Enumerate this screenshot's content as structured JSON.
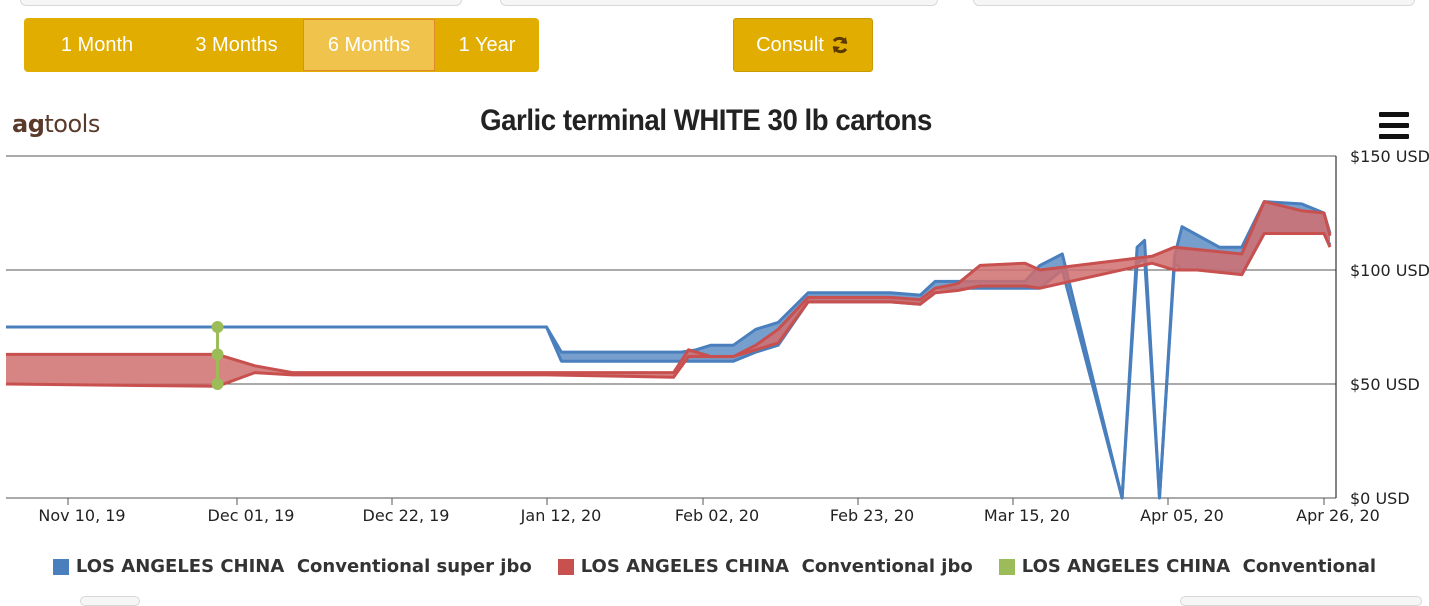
{
  "range_buttons": [
    {
      "label": "1 Month",
      "active": false
    },
    {
      "label": "3 Months",
      "active": false
    },
    {
      "label": "6 Months",
      "active": true
    },
    {
      "label": "1 Year",
      "active": false
    }
  ],
  "consult_button": {
    "label": "Consult",
    "icon": "refresh-icon"
  },
  "logo": {
    "part1": "ag",
    "part2": "tools"
  },
  "menu_icon": "hamburger-menu-icon",
  "colors": {
    "accent": "#e0ad00",
    "series_blue": "#4a7fbd",
    "series_red": "#c8504f",
    "series_red_fill": "#d06e6e",
    "series_green": "#9cbc59"
  },
  "chart_data": {
    "type": "area",
    "title": "Garlic terminal WHITE 30 lb cartons",
    "xlabel": "",
    "ylabel": "",
    "x_ticks": [
      "Nov 10, 19",
      "Dec 01, 19",
      "Dec 22, 19",
      "Jan 12, 20",
      "Feb 02, 20",
      "Feb 23, 20",
      "Mar 15, 20",
      "Apr 05, 20",
      "Apr 26, 20"
    ],
    "y_ticks": [
      "$0 USD",
      "$50 USD",
      "$100 USD",
      "$150 USD"
    ],
    "ylim": [
      0,
      150
    ],
    "grid": true,
    "legend_position": "bottom",
    "series": [
      {
        "name": "LOS ANGELES CHINA  Conventional super jbo",
        "color": "#4a7fbd",
        "x": [
          "2019-11-01",
          "2019-11-30",
          "2020-01-13",
          "2020-01-15",
          "2020-01-31",
          "2020-02-02",
          "2020-02-04",
          "2020-02-07",
          "2020-02-10",
          "2020-02-13",
          "2020-02-17",
          "2020-02-28",
          "2020-03-03",
          "2020-03-05",
          "2020-03-08",
          "2020-03-11",
          "2020-03-17",
          "2020-03-19",
          "2020-03-22",
          "2020-03-30",
          "2020-04-01",
          "2020-04-02",
          "2020-04-04",
          "2020-04-06",
          "2020-04-07",
          "2020-04-12",
          "2020-04-15",
          "2020-04-18",
          "2020-04-23",
          "2020-04-26",
          "2020-04-30"
        ],
        "high": [
          75,
          75,
          75,
          64,
          64,
          65,
          67,
          67,
          74,
          77,
          90,
          90,
          89,
          95,
          95,
          95,
          95,
          102,
          107,
          0,
          110,
          113,
          0,
          106,
          119,
          110,
          110,
          130,
          129,
          125,
          116
        ],
        "low": [
          75,
          75,
          75,
          60,
          60,
          60,
          60,
          60,
          64,
          67,
          86,
          86,
          85,
          92,
          92,
          92,
          92,
          92,
          100,
          0,
          103,
          105,
          0,
          103,
          100,
          100,
          98,
          116,
          116,
          116,
          111
        ]
      },
      {
        "name": "LOS ANGELES CHINA  Conventional jbo",
        "color": "#c8504f",
        "x": [
          "2019-11-01",
          "2019-11-30",
          "2019-12-05",
          "2019-12-10",
          "2020-01-13",
          "2020-01-30",
          "2020-02-01",
          "2020-02-04",
          "2020-02-07",
          "2020-02-10",
          "2020-02-13",
          "2020-02-17",
          "2020-02-28",
          "2020-03-03",
          "2020-03-05",
          "2020-03-08",
          "2020-03-11",
          "2020-03-17",
          "2020-03-19",
          "2020-04-03",
          "2020-04-06",
          "2020-04-09",
          "2020-04-15",
          "2020-04-18",
          "2020-04-23",
          "2020-04-26",
          "2020-04-30"
        ],
        "high": [
          63,
          63,
          58,
          55,
          55,
          55,
          65,
          62,
          62,
          67,
          74,
          88,
          88,
          87,
          92,
          94,
          102,
          103,
          100,
          106,
          110,
          109,
          107,
          130,
          126,
          125,
          115
        ],
        "low": [
          50,
          49,
          55,
          54,
          54,
          53,
          62,
          62,
          62,
          65,
          68,
          86,
          86,
          85,
          90,
          91,
          93,
          93,
          92,
          103,
          100,
          100,
          98,
          116,
          116,
          116,
          110
        ]
      },
      {
        "name": "LOS ANGELES CHINA  Conventional",
        "color": "#9cbc59",
        "x": [
          "2019-11-30"
        ],
        "high": [
          75
        ],
        "mid": [
          63
        ],
        "low": [
          50
        ]
      }
    ]
  }
}
